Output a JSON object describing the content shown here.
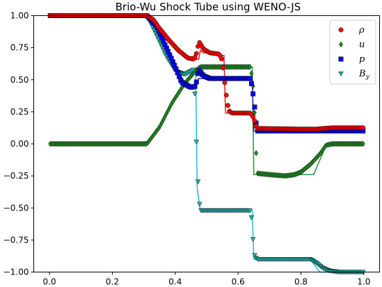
{
  "chart_data": {
    "type": "line",
    "title": "Brio-Wu Shock Tube using WENO-JS",
    "xlabel": "",
    "ylabel": "",
    "xlim": [
      -0.05,
      1.05
    ],
    "ylim": [
      -1.0,
      1.0
    ],
    "x_ticks": [
      "0.0",
      "0.2",
      "0.4",
      "0.6",
      "0.8",
      "1.0"
    ],
    "y_ticks": [
      "1.00",
      "0.75",
      "0.50",
      "0.25",
      "0.00",
      "−0.25",
      "−0.50",
      "−0.75",
      "−1.00"
    ],
    "grid": false,
    "legend_position": "top-right",
    "series": [
      {
        "key": "rho",
        "name": "ρ",
        "color": "#ff0000",
        "line_color": "#e31a1c",
        "marker": "circle",
        "reference": [
          [
            0.0,
            1.0
          ],
          [
            0.31,
            1.0
          ],
          [
            0.33,
            0.97
          ],
          [
            0.35,
            0.88
          ],
          [
            0.38,
            0.79
          ],
          [
            0.41,
            0.71
          ],
          [
            0.44,
            0.68
          ],
          [
            0.465,
            0.66
          ],
          [
            0.475,
            0.66
          ],
          [
            0.48,
            0.73
          ],
          [
            0.49,
            0.71
          ],
          [
            0.55,
            0.69
          ],
          [
            0.555,
            0.69
          ],
          [
            0.56,
            0.24
          ],
          [
            0.645,
            0.24
          ],
          [
            0.65,
            0.125
          ],
          [
            1.0,
            0.125
          ]
        ],
        "numerical": [
          [
            0.0,
            1.0
          ],
          [
            0.31,
            1.0
          ],
          [
            0.33,
            0.97
          ],
          [
            0.35,
            0.9
          ],
          [
            0.38,
            0.81
          ],
          [
            0.41,
            0.73
          ],
          [
            0.44,
            0.67
          ],
          [
            0.46,
            0.66
          ],
          [
            0.47,
            0.72
          ],
          [
            0.475,
            0.8
          ],
          [
            0.49,
            0.74
          ],
          [
            0.51,
            0.71
          ],
          [
            0.54,
            0.7
          ],
          [
            0.55,
            0.65
          ],
          [
            0.56,
            0.42
          ],
          [
            0.57,
            0.26
          ],
          [
            0.58,
            0.24
          ],
          [
            0.64,
            0.24
          ],
          [
            0.65,
            0.2
          ],
          [
            0.66,
            0.12
          ],
          [
            0.8,
            0.115
          ],
          [
            0.85,
            0.115
          ],
          [
            0.87,
            0.12
          ],
          [
            0.9,
            0.125
          ],
          [
            1.0,
            0.125
          ]
        ]
      },
      {
        "key": "u",
        "name": "u",
        "color": "#228b22",
        "line_color": "#1a9641",
        "marker": "diamond",
        "reference": [
          [
            0.0,
            0.0
          ],
          [
            0.31,
            0.0
          ],
          [
            0.35,
            0.14
          ],
          [
            0.39,
            0.33
          ],
          [
            0.43,
            0.47
          ],
          [
            0.465,
            0.58
          ],
          [
            0.48,
            0.6
          ],
          [
            0.645,
            0.6
          ],
          [
            0.65,
            -0.24
          ],
          [
            0.84,
            -0.24
          ],
          [
            0.87,
            -0.07
          ],
          [
            0.88,
            0.0
          ],
          [
            1.0,
            0.0
          ]
        ],
        "numerical": [
          [
            0.0,
            0.0
          ],
          [
            0.31,
            0.0
          ],
          [
            0.35,
            0.13
          ],
          [
            0.39,
            0.32
          ],
          [
            0.43,
            0.47
          ],
          [
            0.465,
            0.57
          ],
          [
            0.48,
            0.6
          ],
          [
            0.64,
            0.6
          ],
          [
            0.65,
            0.4
          ],
          [
            0.66,
            -0.23
          ],
          [
            0.7,
            -0.24
          ],
          [
            0.75,
            -0.25
          ],
          [
            0.78,
            -0.24
          ],
          [
            0.8,
            -0.22
          ],
          [
            0.83,
            -0.16
          ],
          [
            0.86,
            -0.08
          ],
          [
            0.88,
            -0.01
          ],
          [
            0.9,
            0.0
          ],
          [
            1.0,
            0.0
          ]
        ]
      },
      {
        "key": "p",
        "name": "p",
        "color": "#0000ff",
        "line_color": "#1f1fb4",
        "marker": "square",
        "reference": [
          [
            0.0,
            1.0
          ],
          [
            0.31,
            1.0
          ],
          [
            0.34,
            0.92
          ],
          [
            0.37,
            0.76
          ],
          [
            0.4,
            0.6
          ],
          [
            0.43,
            0.48
          ],
          [
            0.465,
            0.44
          ],
          [
            0.475,
            0.51
          ],
          [
            0.645,
            0.51
          ],
          [
            0.65,
            0.1
          ],
          [
            1.0,
            0.1
          ]
        ],
        "numerical": [
          [
            0.0,
            1.0
          ],
          [
            0.31,
            1.0
          ],
          [
            0.34,
            0.92
          ],
          [
            0.37,
            0.76
          ],
          [
            0.4,
            0.6
          ],
          [
            0.42,
            0.48
          ],
          [
            0.45,
            0.44
          ],
          [
            0.465,
            0.45
          ],
          [
            0.475,
            0.58
          ],
          [
            0.49,
            0.53
          ],
          [
            0.51,
            0.51
          ],
          [
            0.64,
            0.51
          ],
          [
            0.65,
            0.35
          ],
          [
            0.66,
            0.1
          ],
          [
            1.0,
            0.1
          ]
        ]
      },
      {
        "key": "By",
        "name": "B",
        "name_sub": "y",
        "color": "#20b2aa",
        "line_color": "#17becf",
        "marker": "triangle-down",
        "reference": [
          [
            0.0,
            1.0
          ],
          [
            0.31,
            1.0
          ],
          [
            0.34,
            0.87
          ],
          [
            0.37,
            0.72
          ],
          [
            0.4,
            0.58
          ],
          [
            0.43,
            0.54
          ],
          [
            0.465,
            0.58
          ],
          [
            0.47,
            -0.35
          ],
          [
            0.48,
            -0.52
          ],
          [
            0.645,
            -0.52
          ],
          [
            0.65,
            -0.9
          ],
          [
            0.83,
            -0.9
          ],
          [
            0.86,
            -1.0
          ],
          [
            1.0,
            -1.0
          ]
        ],
        "numerical": [
          [
            0.0,
            1.0
          ],
          [
            0.31,
            1.0
          ],
          [
            0.34,
            0.85
          ],
          [
            0.37,
            0.69
          ],
          [
            0.4,
            0.57
          ],
          [
            0.43,
            0.54
          ],
          [
            0.46,
            0.58
          ],
          [
            0.465,
            0.2
          ],
          [
            0.47,
            -0.17
          ],
          [
            0.475,
            -0.42
          ],
          [
            0.48,
            -0.52
          ],
          [
            0.49,
            -0.52
          ],
          [
            0.64,
            -0.52
          ],
          [
            0.645,
            -0.63
          ],
          [
            0.65,
            -0.86
          ],
          [
            0.66,
            -0.9
          ],
          [
            0.83,
            -0.9
          ],
          [
            0.85,
            -0.93
          ],
          [
            0.87,
            -0.97
          ],
          [
            0.89,
            -0.99
          ],
          [
            0.92,
            -1.0
          ],
          [
            1.0,
            -1.0
          ]
        ]
      }
    ]
  }
}
